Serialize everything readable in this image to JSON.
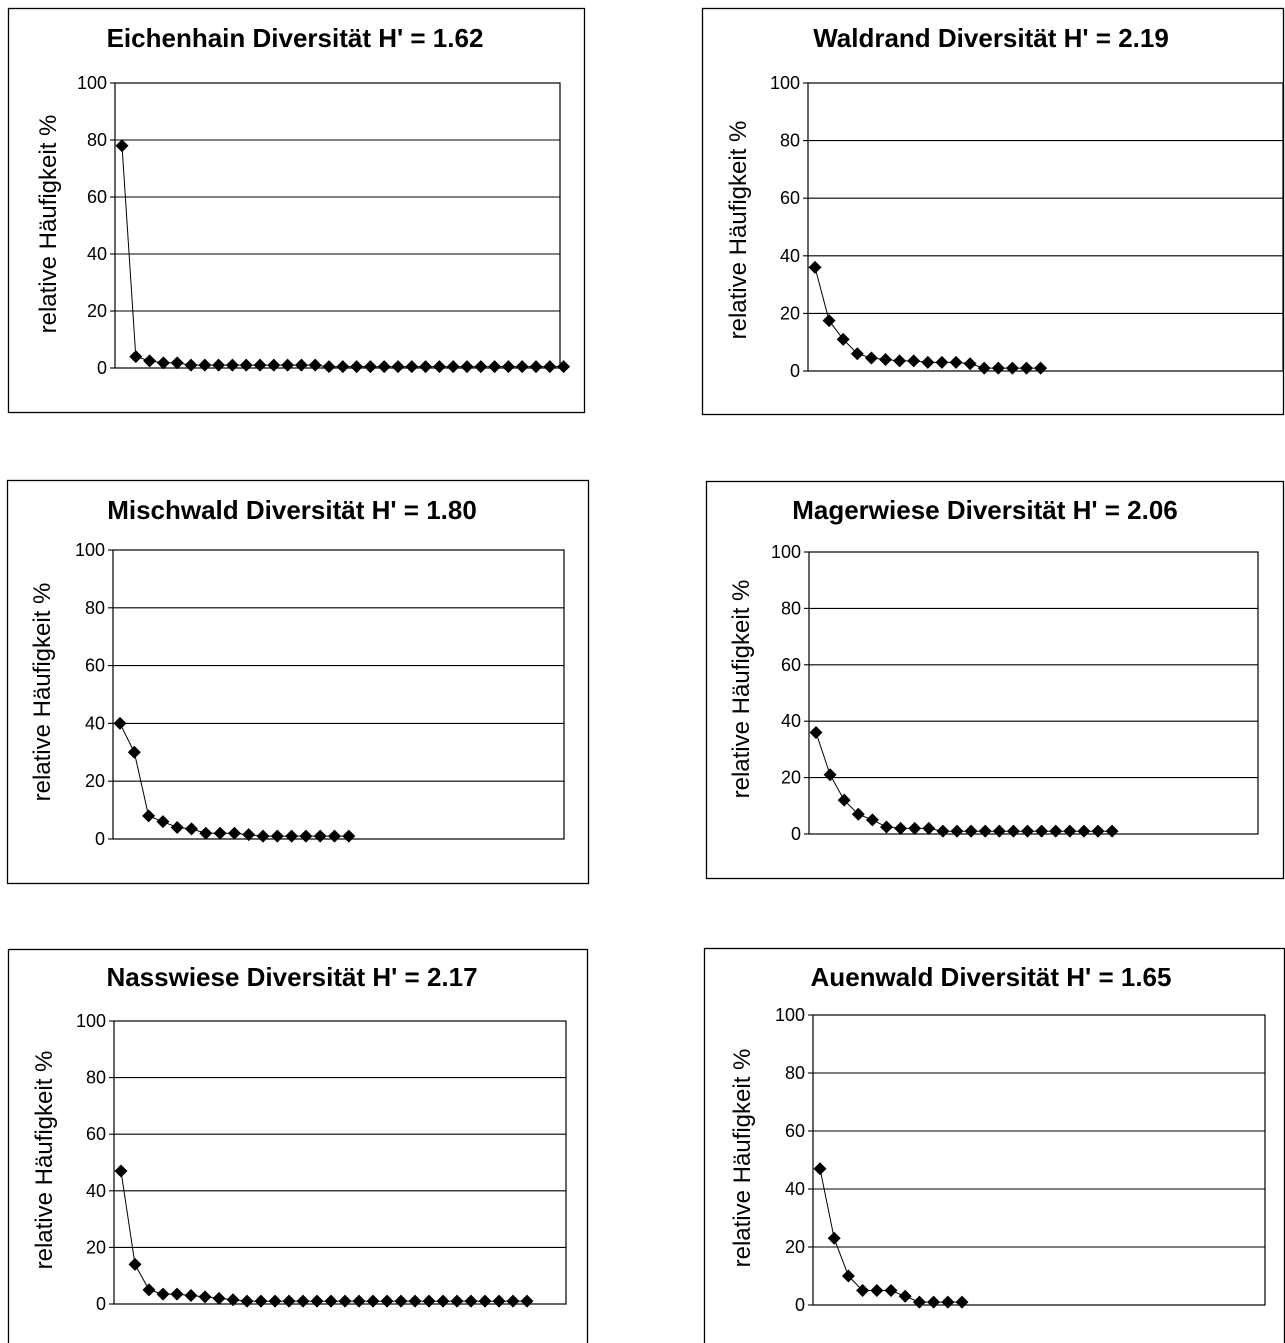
{
  "chart_data": [
    {
      "type": "line",
      "title": "Eichenhain Diversität H' = 1.62",
      "ylabel": "relative Häufigkeit %",
      "xlabel": "",
      "ylim": [
        0,
        100
      ],
      "yticks": [
        "0",
        "20",
        "40",
        "60",
        "80",
        "100"
      ],
      "grid": true,
      "marker": "diamond",
      "values": [
        78,
        4,
        2.5,
        1.8,
        1.8,
        1,
        1,
        1,
        1,
        1,
        1,
        1,
        1,
        1,
        1,
        0.5,
        0.5,
        0.5,
        0.5,
        0.5,
        0.5,
        0.5,
        0.5,
        0.5,
        0.5,
        0.5,
        0.5,
        0.5,
        0.5,
        0.5,
        0.5,
        0.5,
        0.5
      ]
    },
    {
      "type": "line",
      "title": "Waldrand Diversität H' = 2.19",
      "ylabel": "relative Häufigkeit %",
      "xlabel": "",
      "ylim": [
        0,
        100
      ],
      "yticks": [
        "0",
        "20",
        "40",
        "60",
        "80",
        "100"
      ],
      "grid": true,
      "marker": "diamond",
      "values": [
        36,
        17.5,
        11,
        6,
        4.5,
        4,
        3.5,
        3.5,
        3,
        3,
        3,
        2.5,
        1,
        1,
        1,
        1,
        1
      ]
    },
    {
      "type": "line",
      "title": "Mischwald Diversität H' = 1.80",
      "ylabel": "relative Häufigkeit %",
      "xlabel": "",
      "ylim": [
        0,
        100
      ],
      "yticks": [
        "0",
        "20",
        "40",
        "60",
        "80",
        "100"
      ],
      "grid": true,
      "marker": "diamond",
      "values": [
        40,
        30,
        8,
        6,
        4,
        3.5,
        2,
        2,
        2,
        1.5,
        1,
        1,
        1,
        1,
        1,
        1,
        1
      ]
    },
    {
      "type": "line",
      "title": "Magerwiese Diversität H' = 2.06",
      "ylabel": "relative Häufigkeit %",
      "xlabel": "",
      "ylim": [
        0,
        100
      ],
      "yticks": [
        "0",
        "20",
        "40",
        "60",
        "80",
        "100"
      ],
      "grid": true,
      "marker": "diamond",
      "values": [
        36,
        21,
        12,
        7,
        5,
        2.5,
        2,
        2,
        2,
        1,
        1,
        1,
        1,
        1,
        1,
        1,
        1,
        1,
        1,
        1,
        1,
        1
      ]
    },
    {
      "type": "line",
      "title": "Nasswiese Diversität H' = 2.17",
      "ylabel": "relative Häufigkeit %",
      "xlabel": "",
      "ylim": [
        0,
        100
      ],
      "yticks": [
        "0",
        "20",
        "40",
        "60",
        "80",
        "100"
      ],
      "grid": true,
      "marker": "diamond",
      "values": [
        47,
        14,
        5,
        3.5,
        3.5,
        3,
        2.5,
        2,
        1.5,
        1,
        1,
        1,
        1,
        1,
        1,
        1,
        1,
        1,
        1,
        1,
        1,
        1,
        1,
        1,
        1,
        1,
        1,
        1,
        1,
        1
      ]
    },
    {
      "type": "line",
      "title": "Auenwald Diversität H' = 1.65",
      "ylabel": "relative Häufigkeit %",
      "xlabel": "",
      "ylim": [
        0,
        100
      ],
      "yticks": [
        "0",
        "20",
        "40",
        "60",
        "80",
        "100"
      ],
      "grid": true,
      "marker": "diamond",
      "values": [
        47,
        23,
        10,
        5,
        5,
        5,
        3,
        1,
        1,
        1,
        1
      ]
    }
  ]
}
